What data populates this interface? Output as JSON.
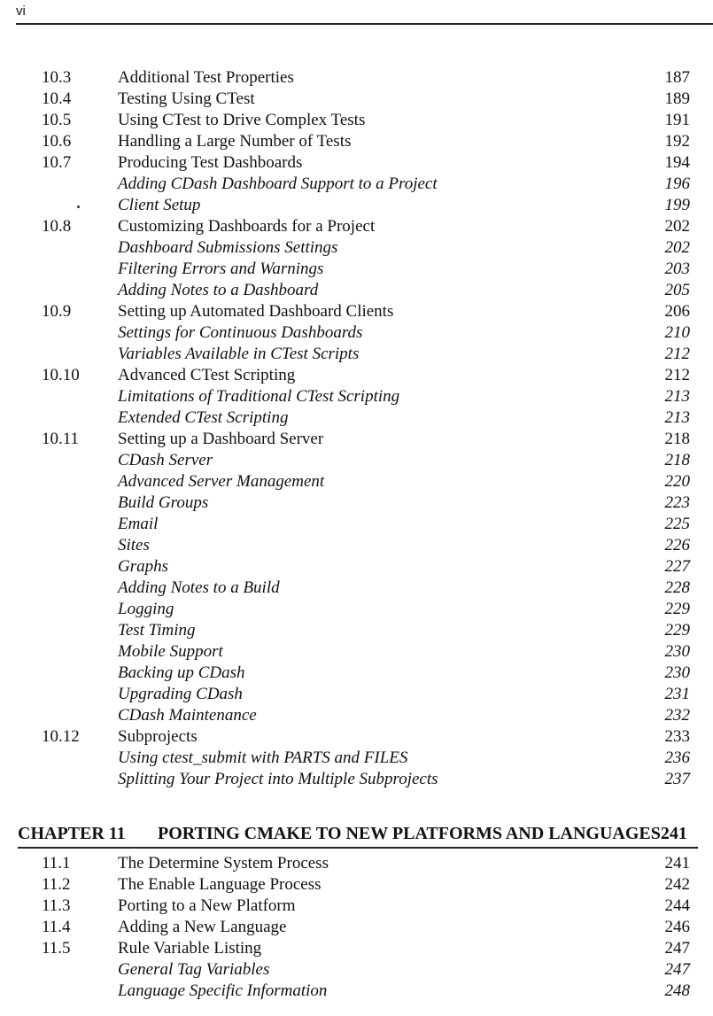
{
  "header": {
    "page_label": "vi"
  },
  "entries_top": [
    {
      "num": "10.3",
      "title": "Additional Test Properties",
      "page": "187",
      "style": "section"
    },
    {
      "num": "10.4",
      "title": "Testing Using CTest",
      "page": "189",
      "style": "section"
    },
    {
      "num": "10.5",
      "title": "Using CTest to Drive Complex Tests",
      "page": "191",
      "style": "section"
    },
    {
      "num": "10.6",
      "title": "Handling a Large Number of Tests",
      "page": "192",
      "style": "section"
    },
    {
      "num": "10.7",
      "title": "Producing Test Dashboards",
      "page": "194",
      "style": "section"
    },
    {
      "num": "",
      "title": "Adding CDash Dashboard Support to a Project",
      "page": "196",
      "style": "sub"
    },
    {
      "num": "",
      "title": "Client Setup",
      "page": "199",
      "style": "sub",
      "dot": true
    },
    {
      "num": "10.8",
      "title": "Customizing Dashboards for a Project",
      "page": "202",
      "style": "section"
    },
    {
      "num": "",
      "title": "Dashboard Submissions Settings",
      "page": "202",
      "style": "sub"
    },
    {
      "num": "",
      "title": "Filtering Errors and Warnings",
      "page": "203",
      "style": "sub"
    },
    {
      "num": "",
      "title": "Adding Notes to a Dashboard",
      "page": "205",
      "style": "sub"
    },
    {
      "num": "10.9",
      "title": "Setting up Automated Dashboard Clients",
      "page": "206",
      "style": "section"
    },
    {
      "num": "",
      "title": "Settings for Continuous Dashboards",
      "page": "210",
      "style": "sub"
    },
    {
      "num": "",
      "title": "Variables Available in CTest Scripts",
      "page": "212",
      "style": "sub"
    },
    {
      "num": "10.10",
      "title": "Advanced CTest Scripting",
      "page": "212",
      "style": "section"
    },
    {
      "num": "",
      "title": "Limitations of Traditional CTest Scripting",
      "page": "213",
      "style": "sub"
    },
    {
      "num": "",
      "title": "Extended CTest Scripting",
      "page": "213",
      "style": "sub"
    },
    {
      "num": "10.11",
      "title": "Setting up a Dashboard Server",
      "page": "218",
      "style": "section"
    },
    {
      "num": "",
      "title": "CDash Server",
      "page": "218",
      "style": "sub"
    },
    {
      "num": "",
      "title": "Advanced Server Management",
      "page": "220",
      "style": "sub"
    },
    {
      "num": "",
      "title": "Build Groups",
      "page": "223",
      "style": "sub"
    },
    {
      "num": "",
      "title": "Email",
      "page": "225",
      "style": "sub"
    },
    {
      "num": "",
      "title": "Sites",
      "page": "226",
      "style": "sub"
    },
    {
      "num": "",
      "title": "Graphs",
      "page": "227",
      "style": "sub"
    },
    {
      "num": "",
      "title": "Adding Notes to a Build",
      "page": "228",
      "style": "sub"
    },
    {
      "num": "",
      "title": "Logging",
      "page": "229",
      "style": "sub"
    },
    {
      "num": "",
      "title": "Test Timing",
      "page": "229",
      "style": "sub"
    },
    {
      "num": "",
      "title": "Mobile Support",
      "page": "230",
      "style": "sub"
    },
    {
      "num": "",
      "title": "Backing up CDash",
      "page": "230",
      "style": "sub"
    },
    {
      "num": "",
      "title": "Upgrading CDash",
      "page": "231",
      "style": "sub"
    },
    {
      "num": "",
      "title": "CDash Maintenance",
      "page": "232",
      "style": "sub"
    },
    {
      "num": "10.12",
      "title": "Subprojects",
      "page": "233",
      "style": "section"
    },
    {
      "num": "",
      "title": "Using ctest_submit with PARTS and FILES",
      "page": "236",
      "style": "sub"
    },
    {
      "num": "",
      "title": "Splitting Your Project into Multiple Subprojects",
      "page": "237",
      "style": "sub"
    }
  ],
  "chapter": {
    "label": "CHAPTER 11",
    "title": "PORTING CMAKE TO NEW PLATFORMS AND LANGUAGES241"
  },
  "entries_bottom": [
    {
      "num": "11.1",
      "title": "The Determine System Process",
      "page": "241",
      "style": "section"
    },
    {
      "num": "11.2",
      "title": "The Enable Language Process",
      "page": "242",
      "style": "section"
    },
    {
      "num": "11.3",
      "title": "Porting to a New Platform",
      "page": "244",
      "style": "section"
    },
    {
      "num": "11.4",
      "title": "Adding a New Language",
      "page": "246",
      "style": "section"
    },
    {
      "num": "11.5",
      "title": "Rule Variable Listing",
      "page": "247",
      "style": "section"
    },
    {
      "num": "",
      "title": "General Tag Variables",
      "page": "247",
      "style": "sub"
    },
    {
      "num": "",
      "title": "Language Specific Information",
      "page": "248",
      "style": "sub"
    }
  ]
}
